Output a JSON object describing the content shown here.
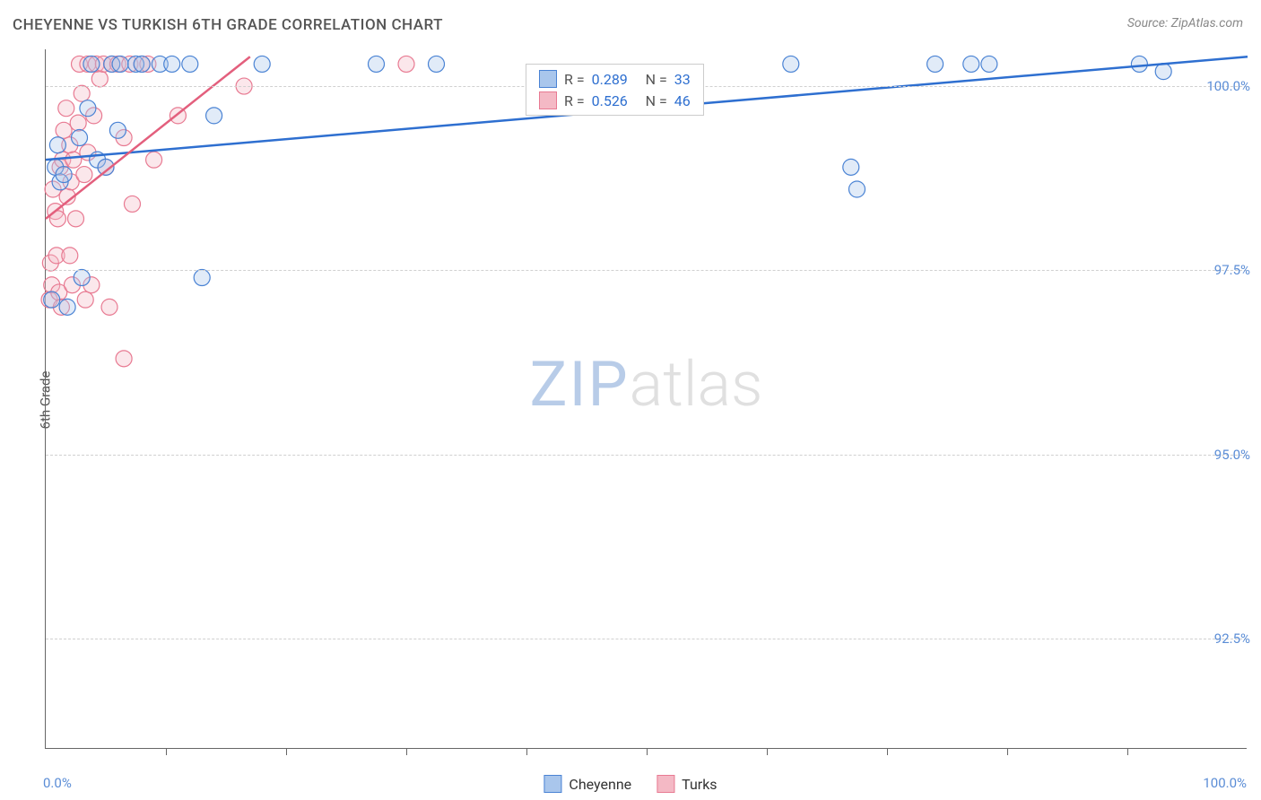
{
  "title": "CHEYENNE VS TURKISH 6TH GRADE CORRELATION CHART",
  "source": "Source: ZipAtlas.com",
  "ylabel": "6th Grade",
  "watermark": {
    "zip": "ZIP",
    "atlas": "atlas"
  },
  "chart": {
    "type": "scatter",
    "background_color": "#ffffff",
    "grid_color": "#d0d0d0",
    "axis_color": "#666666",
    "label_color": "#5b8dd6",
    "xlim": [
      0,
      100
    ],
    "ylim": [
      91.0,
      100.5
    ],
    "xticks_minor": [
      10,
      20,
      30,
      40,
      50,
      60,
      70,
      80,
      90
    ],
    "xlabels": [
      {
        "value": 0,
        "text": "0.0%"
      },
      {
        "value": 100,
        "text": "100.0%"
      }
    ],
    "ylabels": [
      {
        "value": 92.5,
        "text": "92.5%"
      },
      {
        "value": 95.0,
        "text": "95.0%"
      },
      {
        "value": 97.5,
        "text": "97.5%"
      },
      {
        "value": 100.0,
        "text": "100.0%"
      }
    ],
    "marker_radius": 9,
    "marker_stroke_width": 1.2,
    "marker_fill_opacity": 0.35,
    "line_width": 2.5,
    "series": {
      "cheyenne": {
        "label": "Cheyenne",
        "fill": "#a9c6ec",
        "stroke": "#4a83d4",
        "line_color": "#2e6fd0",
        "R": "0.289",
        "N": "33",
        "trend": {
          "x1": 0,
          "y1": 99.0,
          "x2": 100,
          "y2": 100.4
        },
        "points": [
          [
            0.5,
            97.1
          ],
          [
            0.8,
            98.9
          ],
          [
            1.0,
            99.2
          ],
          [
            1.2,
            98.7
          ],
          [
            1.5,
            98.8
          ],
          [
            1.8,
            97.0
          ],
          [
            3.0,
            97.4
          ],
          [
            2.8,
            99.3
          ],
          [
            3.5,
            99.7
          ],
          [
            3.8,
            100.3
          ],
          [
            4.3,
            99.0
          ],
          [
            5.0,
            98.9
          ],
          [
            5.5,
            100.3
          ],
          [
            6.2,
            100.3
          ],
          [
            6.0,
            99.4
          ],
          [
            7.5,
            100.3
          ],
          [
            8.0,
            100.3
          ],
          [
            9.5,
            100.3
          ],
          [
            10.5,
            100.3
          ],
          [
            12.0,
            100.3
          ],
          [
            14.0,
            99.6
          ],
          [
            13.0,
            97.4
          ],
          [
            18.0,
            100.3
          ],
          [
            27.5,
            100.3
          ],
          [
            32.5,
            100.3
          ],
          [
            62.0,
            100.3
          ],
          [
            67.0,
            98.9
          ],
          [
            67.5,
            98.6
          ],
          [
            74.0,
            100.3
          ],
          [
            77.0,
            100.3
          ],
          [
            78.5,
            100.3
          ],
          [
            91.0,
            100.3
          ],
          [
            93.0,
            100.2
          ]
        ]
      },
      "turks": {
        "label": "Turks",
        "fill": "#f4b9c5",
        "stroke": "#e87a92",
        "line_color": "#e35f7d",
        "R": "0.526",
        "N": "46",
        "trend": {
          "x1": 0,
          "y1": 98.2,
          "x2": 17,
          "y2": 100.4
        },
        "points": [
          [
            0.3,
            97.1
          ],
          [
            0.5,
            97.3
          ],
          [
            0.4,
            97.6
          ],
          [
            0.8,
            98.3
          ],
          [
            0.6,
            98.6
          ],
          [
            1.0,
            98.2
          ],
          [
            0.9,
            97.7
          ],
          [
            1.2,
            98.9
          ],
          [
            1.1,
            97.2
          ],
          [
            1.3,
            97.0
          ],
          [
            1.5,
            99.4
          ],
          [
            1.4,
            99.0
          ],
          [
            1.8,
            98.5
          ],
          [
            1.7,
            99.7
          ],
          [
            2.0,
            99.2
          ],
          [
            2.1,
            98.7
          ],
          [
            2.3,
            99.0
          ],
          [
            2.0,
            97.7
          ],
          [
            2.5,
            98.2
          ],
          [
            2.2,
            97.3
          ],
          [
            2.7,
            99.5
          ],
          [
            2.8,
            100.3
          ],
          [
            3.0,
            99.9
          ],
          [
            3.2,
            98.8
          ],
          [
            3.3,
            97.1
          ],
          [
            3.5,
            99.1
          ],
          [
            3.5,
            100.3
          ],
          [
            3.8,
            97.3
          ],
          [
            4.0,
            99.6
          ],
          [
            4.2,
            100.3
          ],
          [
            4.5,
            100.1
          ],
          [
            4.8,
            100.3
          ],
          [
            5.0,
            98.9
          ],
          [
            5.5,
            100.3
          ],
          [
            5.3,
            97.0
          ],
          [
            6.0,
            100.3
          ],
          [
            6.5,
            99.3
          ],
          [
            6.5,
            96.3
          ],
          [
            7.0,
            100.3
          ],
          [
            7.2,
            98.4
          ],
          [
            8.0,
            100.3
          ],
          [
            8.5,
            100.3
          ],
          [
            9.0,
            99.0
          ],
          [
            11.0,
            99.6
          ],
          [
            16.5,
            100.0
          ],
          [
            30.0,
            100.3
          ]
        ]
      }
    }
  },
  "stats_legend": {
    "R_label": "R =",
    "N_label": "N ="
  },
  "bottom_legend": {
    "items": [
      {
        "key": "cheyenne"
      },
      {
        "key": "turks"
      }
    ]
  },
  "colors": {
    "stat_value": "#2e6fd0",
    "stat_label": "#555555"
  }
}
